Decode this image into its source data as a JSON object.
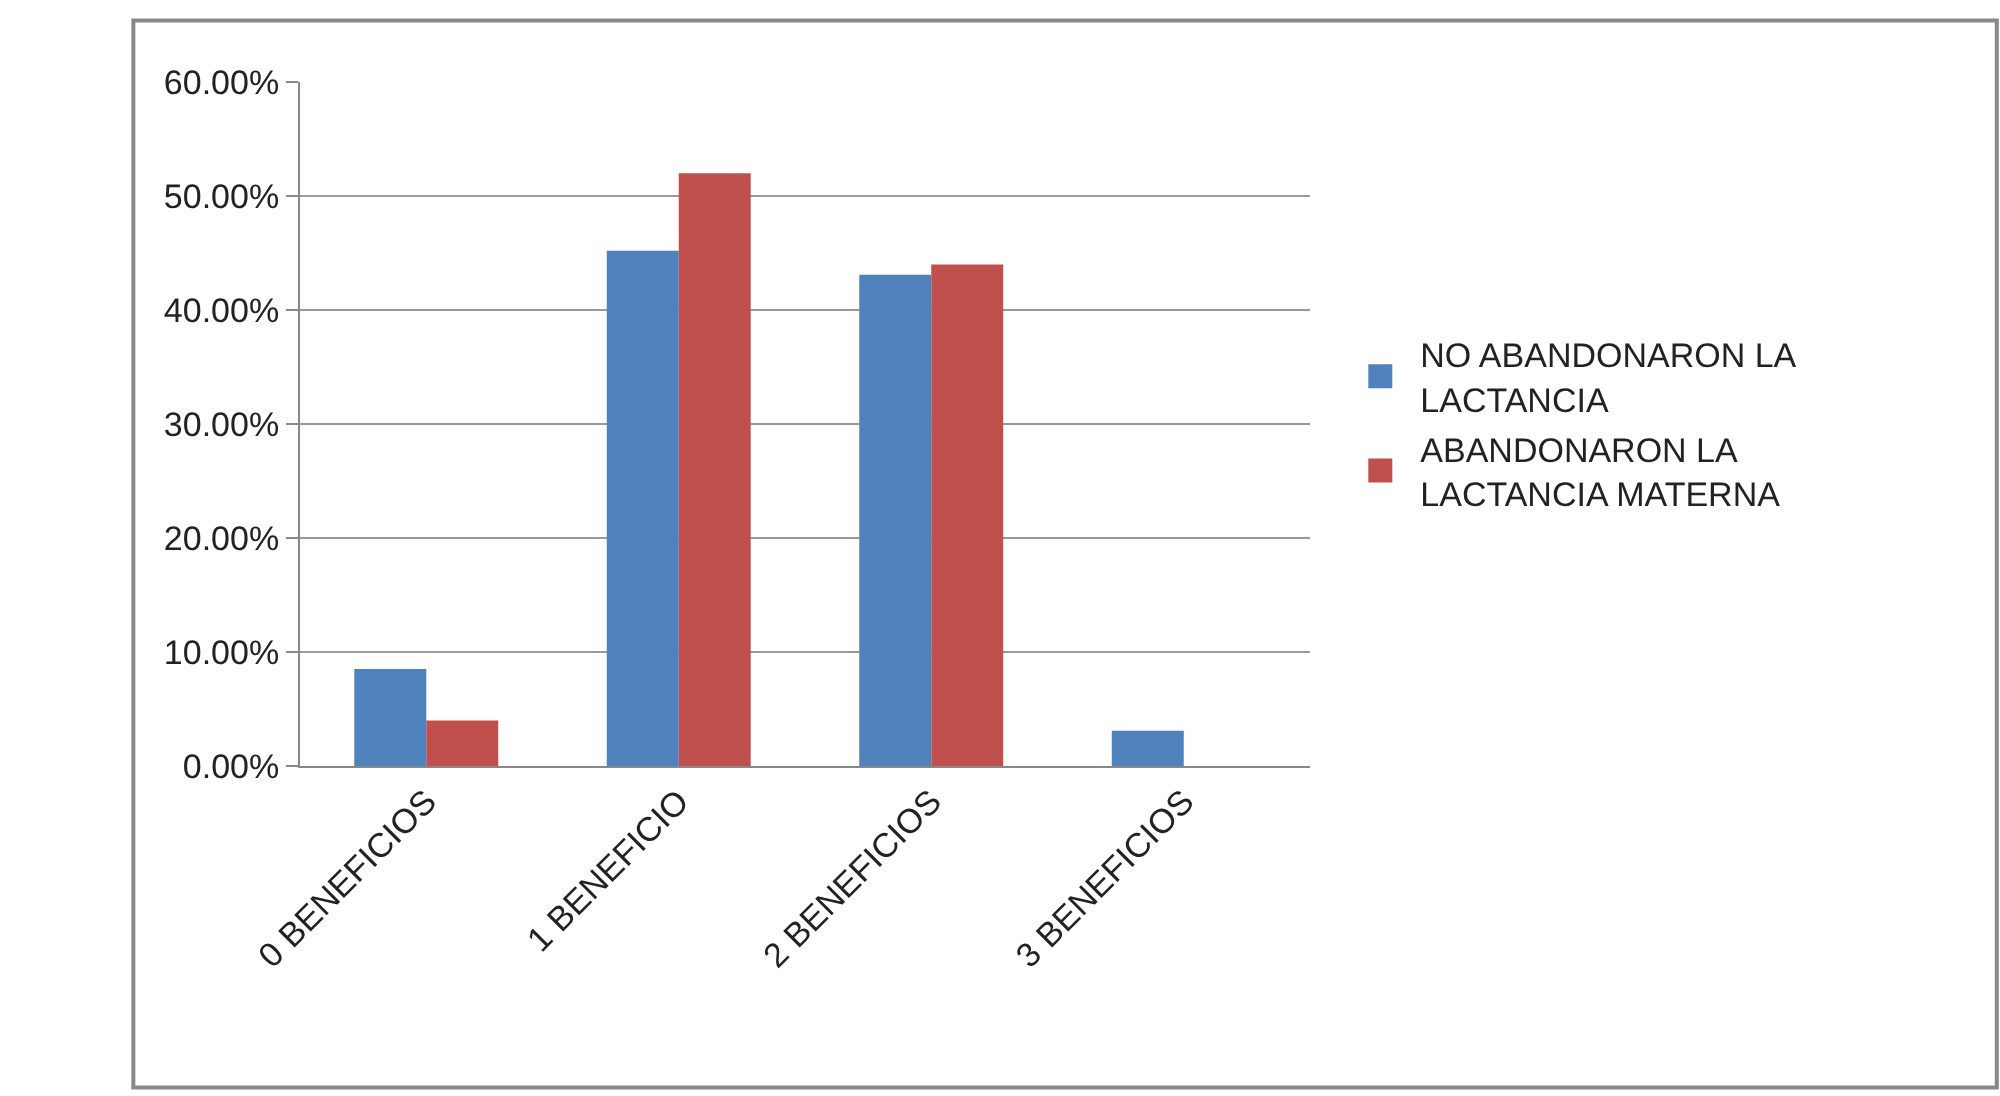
{
  "chart_data": {
    "type": "bar",
    "categories": [
      "0 BENEFICIOS",
      "1 BENEFICIO",
      "2 BENEFICIOS",
      "3 BENEFICIOS"
    ],
    "series": [
      {
        "name": "NO ABANDONARON LA LACTANCIA",
        "color": "#4f81bd",
        "values": [
          8.5,
          45.2,
          43.1,
          3.1
        ]
      },
      {
        "name": "ABANDONARON LA LACTANCIA MATERNA",
        "color": "#c0504d",
        "values": [
          4.0,
          52.0,
          44.0,
          0
        ]
      }
    ],
    "ylim": [
      0,
      60
    ],
    "yticks": [
      {
        "value": 0,
        "label": "0.00%"
      },
      {
        "value": 10,
        "label": "10.00%"
      },
      {
        "value": 20,
        "label": "20.00%"
      },
      {
        "value": 30,
        "label": "30.00%"
      },
      {
        "value": 40,
        "label": "40.00%"
      },
      {
        "value": 50,
        "label": "50.00%"
      },
      {
        "value": 60,
        "label": "60.00%"
      }
    ],
    "grid": "y",
    "legend": "right"
  }
}
